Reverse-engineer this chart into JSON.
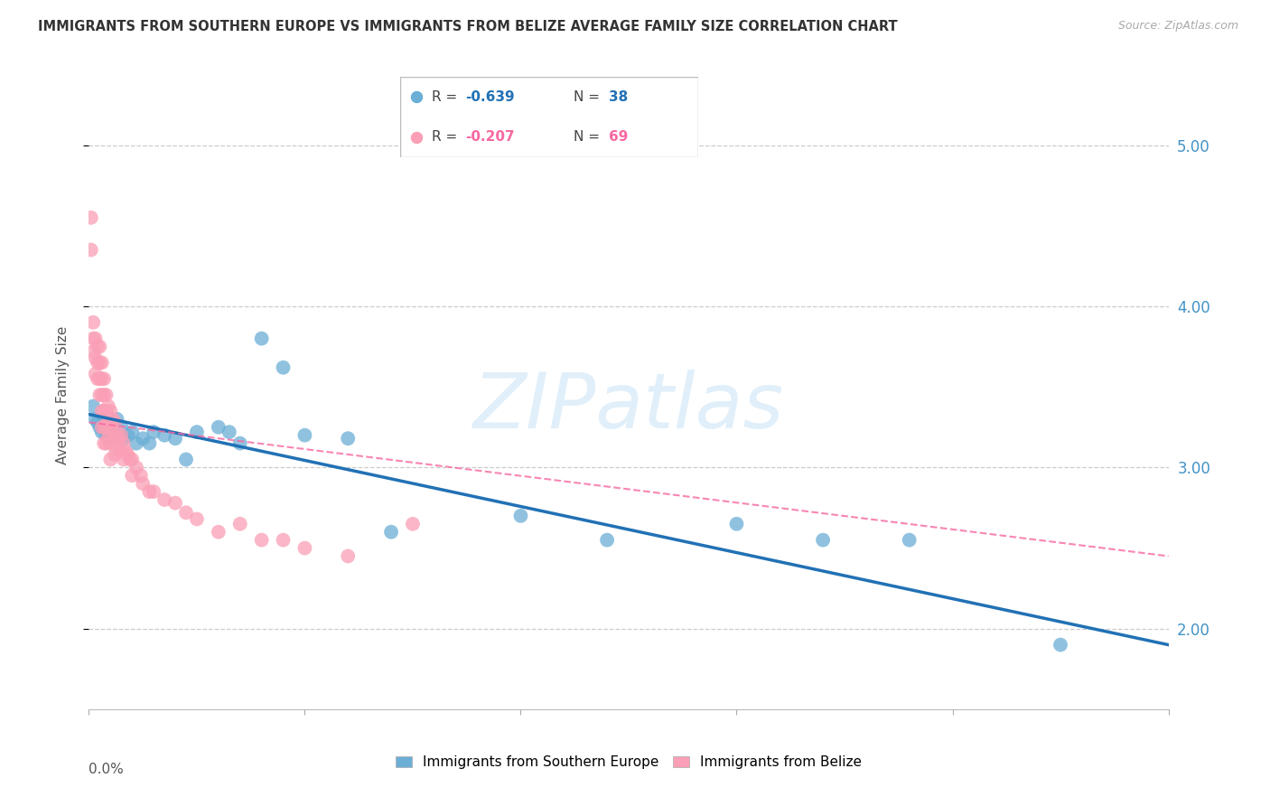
{
  "title": "IMMIGRANTS FROM SOUTHERN EUROPE VS IMMIGRANTS FROM BELIZE AVERAGE FAMILY SIZE CORRELATION CHART",
  "source": "Source: ZipAtlas.com",
  "ylabel": "Average Family Size",
  "color_blue": "#6baed6",
  "color_pink": "#fa9fb5",
  "color_line_blue": "#2171b5",
  "color_line_pink": "#f768a1",
  "color_axis_right": "#4292c6",
  "color_grid": "#cccccc",
  "color_title": "#333333",
  "watermark": "ZIPatlas",
  "legend_label_blue": "Immigrants from Southern Europe",
  "legend_label_pink": "Immigrants from Belize",
  "r_blue": "-0.639",
  "n_blue": "38",
  "r_pink": "-0.207",
  "n_pink": "69",
  "blue_x": [
    0.002,
    0.003,
    0.004,
    0.005,
    0.006,
    0.007,
    0.008,
    0.009,
    0.01,
    0.011,
    0.012,
    0.013,
    0.015,
    0.016,
    0.018,
    0.02,
    0.022,
    0.025,
    0.028,
    0.03,
    0.035,
    0.04,
    0.045,
    0.05,
    0.06,
    0.065,
    0.07,
    0.08,
    0.09,
    0.1,
    0.12,
    0.14,
    0.2,
    0.24,
    0.3,
    0.34,
    0.38,
    0.45
  ],
  "blue_y": [
    3.38,
    3.3,
    3.28,
    3.25,
    3.22,
    3.3,
    3.2,
    3.25,
    3.18,
    3.22,
    3.2,
    3.3,
    3.25,
    3.18,
    3.2,
    3.22,
    3.15,
    3.18,
    3.15,
    3.22,
    3.2,
    3.18,
    3.05,
    3.22,
    3.25,
    3.22,
    3.15,
    3.8,
    3.62,
    3.2,
    3.18,
    2.6,
    2.7,
    2.55,
    2.65,
    2.55,
    2.55,
    1.9
  ],
  "pink_x": [
    0.001,
    0.001,
    0.002,
    0.002,
    0.002,
    0.003,
    0.003,
    0.003,
    0.004,
    0.004,
    0.004,
    0.005,
    0.005,
    0.005,
    0.005,
    0.006,
    0.006,
    0.006,
    0.006,
    0.006,
    0.007,
    0.007,
    0.007,
    0.007,
    0.007,
    0.008,
    0.008,
    0.008,
    0.008,
    0.009,
    0.009,
    0.009,
    0.01,
    0.01,
    0.01,
    0.01,
    0.011,
    0.011,
    0.012,
    0.012,
    0.012,
    0.013,
    0.013,
    0.014,
    0.015,
    0.015,
    0.016,
    0.016,
    0.017,
    0.018,
    0.019,
    0.02,
    0.02,
    0.022,
    0.024,
    0.025,
    0.028,
    0.03,
    0.035,
    0.04,
    0.045,
    0.05,
    0.06,
    0.07,
    0.08,
    0.09,
    0.1,
    0.12,
    0.15
  ],
  "pink_y": [
    4.55,
    4.35,
    3.9,
    3.8,
    3.72,
    3.8,
    3.68,
    3.58,
    3.75,
    3.65,
    3.55,
    3.75,
    3.65,
    3.55,
    3.45,
    3.65,
    3.55,
    3.45,
    3.35,
    3.25,
    3.55,
    3.45,
    3.35,
    3.25,
    3.15,
    3.45,
    3.35,
    3.25,
    3.15,
    3.38,
    3.28,
    3.18,
    3.35,
    3.25,
    3.15,
    3.05,
    3.3,
    3.2,
    3.28,
    3.18,
    3.08,
    3.22,
    3.12,
    3.18,
    3.2,
    3.1,
    3.15,
    3.05,
    3.1,
    3.08,
    3.05,
    3.05,
    2.95,
    3.0,
    2.95,
    2.9,
    2.85,
    2.85,
    2.8,
    2.78,
    2.72,
    2.68,
    2.6,
    2.65,
    2.55,
    2.55,
    2.5,
    2.45,
    2.65
  ]
}
